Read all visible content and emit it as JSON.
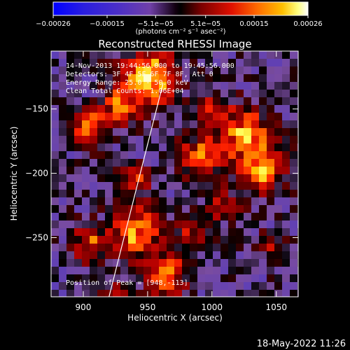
{
  "chart_data": {
    "type": "heatmap",
    "title": "Reconstructed RHESSI Image",
    "xlabel": "Heliocentric X (arcsec)",
    "ylabel": "Heliocentric Y (arcsec)",
    "xlim": [
      875,
      1067
    ],
    "ylim": [
      -296,
      -105
    ],
    "x_ticks": [
      900,
      950,
      1000,
      1050
    ],
    "y_ticks": [
      -150,
      -200,
      -250
    ],
    "x_tick_labels": [
      "900",
      "950",
      "1000",
      "1050"
    ],
    "y_tick_labels": [
      "−150",
      "−200",
      "−250"
    ],
    "colorbar": {
      "min": -0.00026,
      "max": 0.00026,
      "ticks": [
        -0.00026,
        -0.00015,
        -5.1e-05,
        5.1e-05,
        0.00015,
        0.00026
      ],
      "tick_labels": [
        "−0.00026",
        "−0.00015",
        "−5.1e−05",
        "5.1e−05",
        "0.00015",
        "0.00026"
      ],
      "unit_label": "(photons cm⁻² s⁻¹ asec⁻²)",
      "colormap": [
        "#0000ff",
        "#3b1bd8",
        "#5a3db8",
        "#7a4ca0",
        "#000000",
        "#6a0000",
        "#b40000",
        "#ff2200",
        "#ff7a00",
        "#ffc000",
        "#ffff60",
        "#ffffff"
      ]
    },
    "limb_line": {
      "x": [
        920,
        962
      ],
      "y": [
        -296,
        -130
      ]
    },
    "peak": {
      "x": 948,
      "y": -113
    },
    "annotations": [
      "14-Nov-2013 19:44:56.000 to 19:45:56.000",
      "Detectors: 3F 4F 5F 6F 7F 8F, Att 0",
      "Energy Range: 25.0 - 50.0 keV",
      "Clean    Total Counts: 1.06E+04"
    ],
    "peak_label": "Position of Peak = [948,-113]"
  },
  "footer": {
    "timestamp": "18-May-2022 11:26"
  }
}
